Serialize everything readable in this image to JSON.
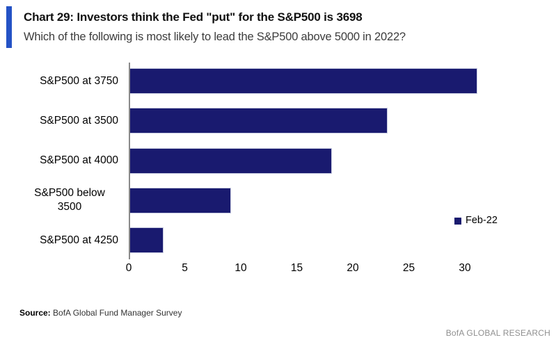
{
  "header": {
    "title": "Chart 29: Investors think the Fed \"put\" for the S&P500 is 3698",
    "subtitle": "Which of the following is most likely to lead the S&P500 above 5000 in 2022?"
  },
  "chart_data": {
    "type": "bar",
    "orientation": "horizontal",
    "categories": [
      "S&P500 at 3750",
      "S&P500 at 3500",
      "S&P500 at 4000",
      "S&P500 below 3500",
      "S&P500 at 4250"
    ],
    "series": [
      {
        "name": "Feb-22",
        "values": [
          31,
          23,
          18,
          9,
          3
        ]
      }
    ],
    "x_ticks": [
      0,
      5,
      10,
      15,
      20,
      25,
      30
    ],
    "xlim": [
      0,
      35
    ],
    "grid": false,
    "legend_position": "right-middle",
    "bar_color": "#191a6f",
    "axis_color": "#8a8a8a"
  },
  "legend": {
    "label": "Feb-22"
  },
  "footer": {
    "source_label": "Source:",
    "source_text": " BofA Global Fund Manager Survey",
    "branding": "BofA GLOBAL RESEARCH"
  },
  "colors": {
    "accent_blue": "#2452c5",
    "bar_navy": "#191a6f",
    "axis_gray": "#8a8a8a",
    "branding_gray": "#8f8f8f"
  }
}
